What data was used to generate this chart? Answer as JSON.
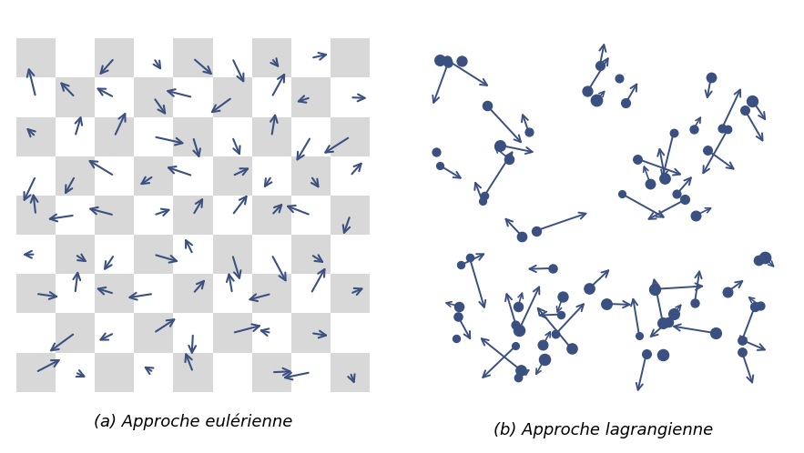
{
  "arrow_color": "#3a5080",
  "grid_color": "#d8d8d8",
  "bg_color": "#ffffff",
  "n_grid": 9,
  "label_a": "(a) Approche eulérienne",
  "label_b": "(b) Approche lagrangienne",
  "label_fontsize": 13,
  "fig_width": 8.83,
  "fig_height": 4.98
}
